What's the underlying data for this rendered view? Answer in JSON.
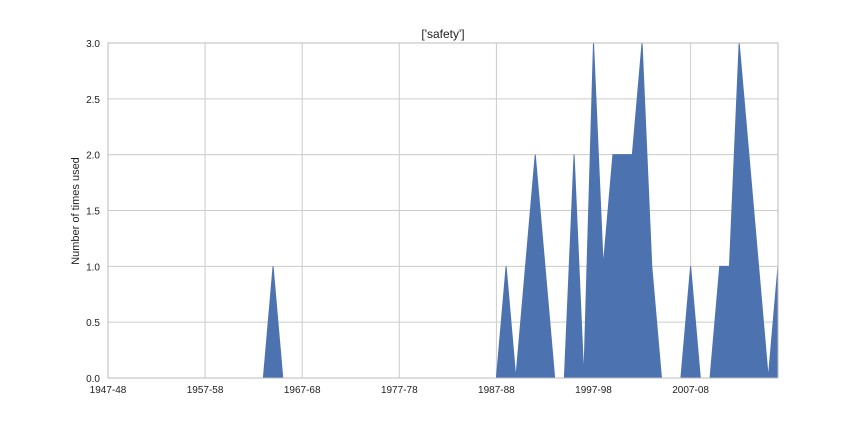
{
  "chart_data": {
    "type": "area",
    "title": "['safety']",
    "xlabel": "",
    "ylabel": "Number of times used",
    "xlim": [
      0,
      69
    ],
    "ylim": [
      0,
      3
    ],
    "grid": true,
    "legend": "none",
    "x_tick_labels": [
      {
        "x": 0,
        "label": "1947-48"
      },
      {
        "x": 10,
        "label": "1957-58"
      },
      {
        "x": 20,
        "label": "1967-68"
      },
      {
        "x": 30,
        "label": "1977-78"
      },
      {
        "x": 40,
        "label": "1987-88"
      },
      {
        "x": 50,
        "label": "1997-98"
      },
      {
        "x": 60,
        "label": "2007-08"
      }
    ],
    "y_tick_labels": [
      "0.0",
      "0.5",
      "1.0",
      "1.5",
      "2.0",
      "2.5",
      "3.0"
    ],
    "series": [
      {
        "color": "#4c72b0",
        "x": [
          0,
          1,
          2,
          3,
          4,
          5,
          6,
          7,
          8,
          9,
          10,
          11,
          12,
          13,
          14,
          15,
          16,
          17,
          18,
          19,
          20,
          21,
          22,
          23,
          24,
          25,
          26,
          27,
          28,
          29,
          30,
          31,
          32,
          33,
          34,
          35,
          36,
          37,
          38,
          39,
          40,
          41,
          42,
          43,
          44,
          45,
          46,
          47,
          48,
          49,
          50,
          51,
          52,
          53,
          54,
          55,
          56,
          57,
          58,
          59,
          60,
          61,
          62,
          63,
          64,
          65,
          66,
          67,
          68,
          69
        ],
        "values": [
          0,
          0,
          0,
          0,
          0,
          0,
          0,
          0,
          0,
          0,
          0,
          0,
          0,
          0,
          0,
          0,
          0,
          1,
          0,
          0,
          0,
          0,
          0,
          0,
          0,
          0,
          0,
          0,
          0,
          0,
          0,
          0,
          0,
          0,
          0,
          0,
          0,
          0,
          0,
          0,
          0,
          1,
          0,
          1,
          2,
          1,
          0,
          0,
          2,
          0,
          3,
          1,
          2,
          2,
          2,
          3,
          1,
          0,
          0,
          0,
          1,
          0,
          0,
          1,
          1,
          3,
          2,
          1,
          0,
          1
        ]
      }
    ]
  }
}
